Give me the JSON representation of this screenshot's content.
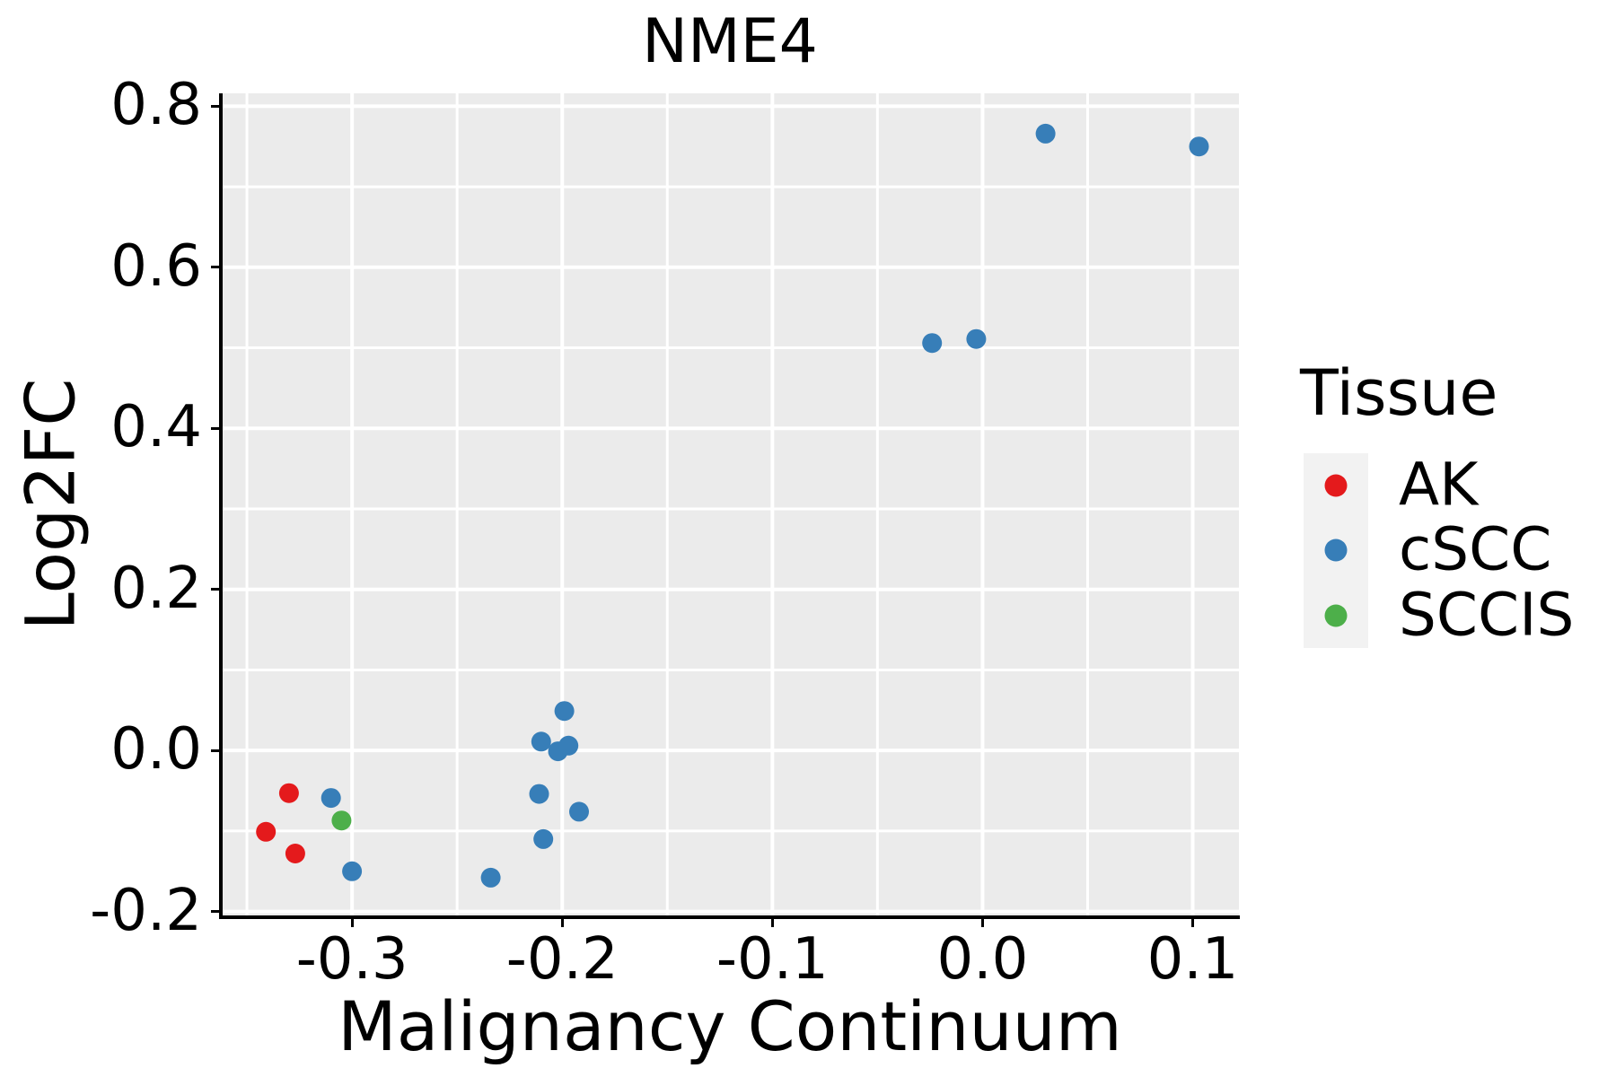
{
  "title": "NME4",
  "chart_data": {
    "type": "scatter",
    "title": "NME4",
    "xlabel": "Malignancy Continuum",
    "ylabel": "Log2FC",
    "xlim": [
      -0.362,
      0.122
    ],
    "ylim": [
      -0.206,
      0.816
    ],
    "x_ticks": [
      -0.3,
      -0.2,
      -0.1,
      0,
      0.1
    ],
    "y_ticks": [
      -0.2,
      0,
      0.2,
      0.4,
      0.6,
      0.8
    ],
    "grid": true,
    "legend_title": "Tissue",
    "legend_position": "right",
    "series": [
      {
        "name": "AK",
        "color": "#e41a1c",
        "points": [
          [
            -0.33,
            -0.053
          ],
          [
            -0.341,
            -0.101
          ],
          [
            -0.327,
            -0.128
          ]
        ]
      },
      {
        "name": "cSCC",
        "color": "#377eb8",
        "points": [
          [
            -0.31,
            -0.059
          ],
          [
            -0.3,
            -0.15
          ],
          [
            -0.234,
            -0.158
          ],
          [
            -0.211,
            -0.054
          ],
          [
            -0.21,
            0.011
          ],
          [
            -0.209,
            -0.11
          ],
          [
            -0.202,
            -0.001
          ],
          [
            -0.199,
            0.049
          ],
          [
            -0.197,
            0.006
          ],
          [
            -0.192,
            -0.076
          ],
          [
            -0.024,
            0.506
          ],
          [
            -0.003,
            0.511
          ],
          [
            0.03,
            0.766
          ],
          [
            0.103,
            0.75
          ]
        ]
      },
      {
        "name": "SCCIS",
        "color": "#4daf4a",
        "points": [
          [
            -0.305,
            -0.087
          ]
        ]
      }
    ]
  },
  "style": {
    "panel_bg": "#ebebeb",
    "grid_color": "#ffffff",
    "axis_color": "#000000",
    "text_color": "#000000",
    "legend_key_bg": "#f2f2f2"
  }
}
